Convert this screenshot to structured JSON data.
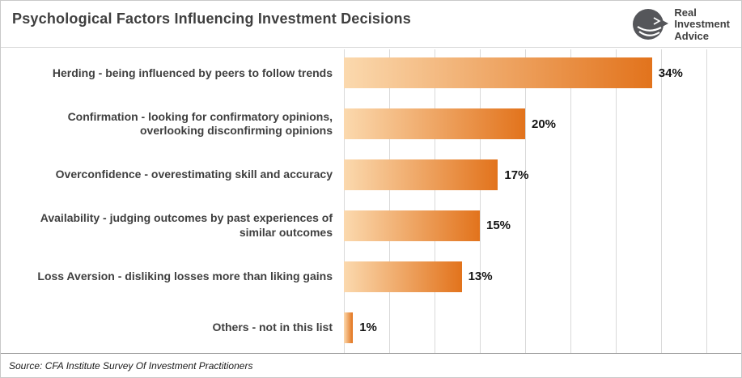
{
  "header": {
    "title": "Psychological Factors Influencing Investment Decisions",
    "logo_lines": [
      "Real",
      "Investment",
      "Advice"
    ]
  },
  "footer": {
    "source": "Source: CFA Institute Survey Of Investment Practitioners"
  },
  "chart_data": {
    "type": "bar",
    "orientation": "horizontal",
    "title": "Psychological Factors Influencing Investment Decisions",
    "categories": [
      "Herding - being influenced by peers to follow trends",
      "Confirmation - looking for confirmatory opinions, overlooking disconfirming opinions",
      "Overconfidence - overestimating skill and accuracy",
      "Availability - judging outcomes by past experiences of similar outcomes",
      "Loss Aversion - disliking losses more than liking gains",
      "Others - not in this list"
    ],
    "values": [
      34,
      20,
      17,
      15,
      13,
      1
    ],
    "value_suffix": "%",
    "xlim": [
      0,
      40
    ],
    "gridline_step": 5,
    "grid": true,
    "legend": false,
    "bar_gradient": [
      "#fbd9ae",
      "#e2731c"
    ],
    "gridline_color": "#d9d9d9"
  }
}
